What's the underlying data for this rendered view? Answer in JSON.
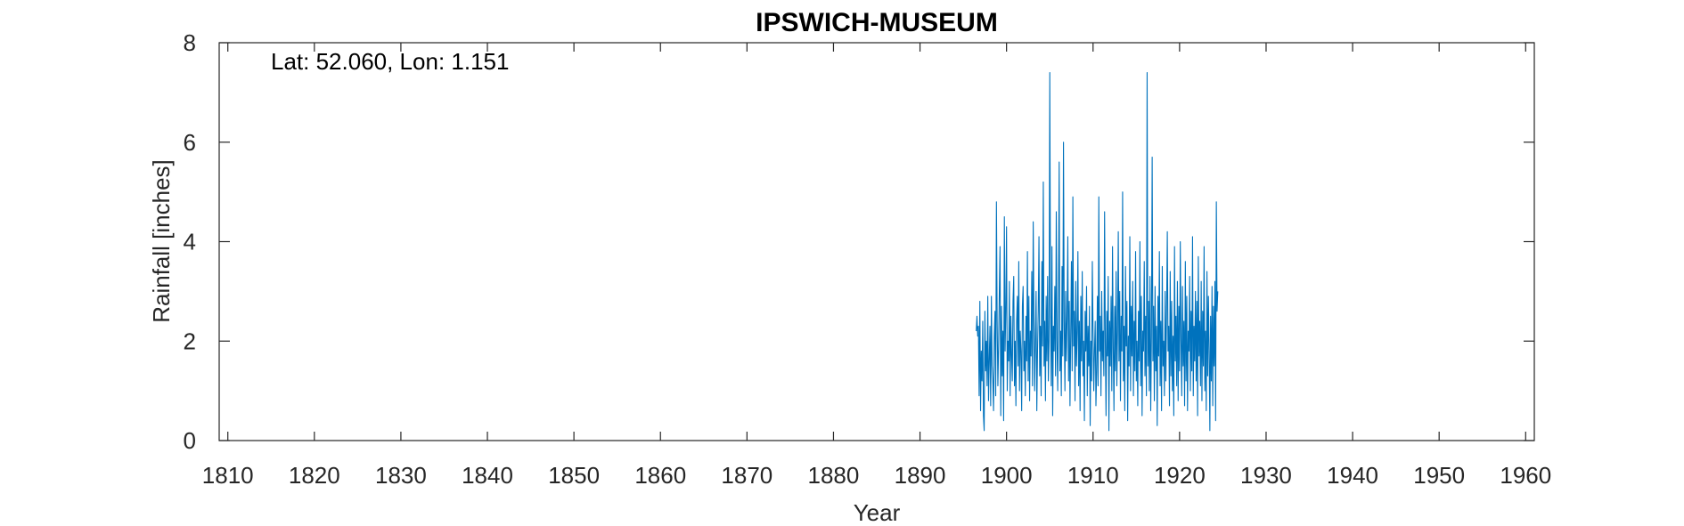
{
  "chart_data": {
    "type": "line",
    "title": "IPSWICH-MUSEUM",
    "annotation": "Lat: 52.060, Lon: 1.151",
    "xlabel": "Year",
    "ylabel": "Rainfall [inches]",
    "xlim": [
      1809,
      1961
    ],
    "ylim": [
      0,
      8
    ],
    "xticks": [
      1810,
      1820,
      1830,
      1840,
      1850,
      1860,
      1870,
      1880,
      1890,
      1900,
      1910,
      1920,
      1930,
      1940,
      1950,
      1960
    ],
    "yticks": [
      0,
      2,
      4,
      6,
      8
    ],
    "grid": false,
    "box": true,
    "series": [
      {
        "color": "#0072bd",
        "start_year": 1896.5,
        "step_years": 0.0833333,
        "values": [
          2.2,
          2.5,
          2.1,
          2.3,
          0.9,
          2.8,
          0.6,
          1.8,
          1.2,
          2.4,
          0.5,
          0.2,
          2.6,
          1.4,
          2.0,
          1.1,
          2.9,
          0.8,
          1.6,
          2.3,
          0.7,
          2.9,
          1.5,
          1.2,
          0.6,
          2.1,
          2.6,
          0.9,
          4.8,
          2.4,
          1.1,
          1.9,
          3.0,
          3.9,
          0.5,
          2.7,
          1.3,
          2.2,
          0.4,
          4.5,
          1.8,
          2.6,
          4.3,
          1.0,
          2.0,
          1.6,
          3.2,
          0.9,
          2.5,
          1.7,
          1.2,
          2.8,
          3.3,
          1.1,
          2.0,
          0.7,
          2.4,
          2.9,
          1.5,
          3.6,
          1.0,
          2.2,
          1.8,
          0.6,
          2.7,
          3.1,
          1.4,
          2.0,
          0.9,
          2.5,
          1.6,
          3.8,
          1.2,
          2.9,
          0.8,
          2.2,
          1.7,
          3.4,
          1.1,
          4.4,
          2.5,
          1.0,
          2.0,
          3.0,
          0.6,
          1.8,
          2.6,
          4.1,
          1.3,
          2.3,
          0.9,
          3.6,
          1.9,
          5.2,
          1.5,
          2.4,
          0.8,
          2.9,
          1.6,
          3.3,
          1.2,
          2.0,
          7.4,
          2.7,
          1.1,
          3.9,
          0.5,
          2.3,
          1.8,
          3.1,
          1.3,
          4.6,
          2.0,
          1.0,
          2.7,
          5.6,
          1.4,
          2.2,
          0.9,
          3.5,
          1.7,
          6.0,
          2.4,
          1.0,
          3.0,
          1.6,
          2.5,
          4.1,
          1.2,
          2.8,
          0.7,
          2.1,
          3.6,
          1.4,
          4.9,
          1.9,
          2.6,
          0.8,
          3.2,
          1.5,
          2.2,
          3.8,
          1.1,
          2.4,
          0.6,
          2.9,
          1.6,
          3.4,
          1.3,
          2.0,
          0.4,
          2.6,
          1.8,
          3.1,
          0.9,
          2.3,
          1.5,
          2.7,
          0.3,
          2.0,
          1.2,
          3.6,
          2.2,
          1.0,
          1.8,
          2.4,
          0.7,
          1.4,
          2.9,
          1.1,
          4.9,
          1.8,
          2.5,
          0.9,
          3.0,
          1.6,
          2.2,
          1.3,
          4.6,
          2.0,
          0.5,
          2.6,
          1.7,
          3.3,
          0.2,
          2.4,
          1.5,
          2.9,
          1.0,
          3.9,
          1.9,
          0.6,
          2.7,
          1.4,
          3.4,
          1.1,
          2.2,
          4.2,
          1.6,
          3.0,
          0.8,
          2.5,
          1.8,
          5.0,
          1.2,
          2.3,
          0.6,
          3.5,
          1.9,
          2.8,
          0.4,
          2.1,
          1.5,
          4.1,
          1.0,
          2.7,
          1.7,
          3.2,
          0.9,
          2.4,
          1.4,
          3.8,
          1.2,
          2.0,
          0.7,
          2.6,
          1.6,
          4.0,
          1.1,
          2.9,
          0.5,
          2.2,
          1.8,
          3.6,
          1.3,
          2.5,
          0.9,
          7.4,
          1.5,
          2.8,
          1.0,
          3.3,
          0.6,
          2.1,
          5.7,
          1.6,
          2.7,
          0.8,
          3.1,
          1.4,
          2.3,
          0.3,
          2.9,
          1.7,
          3.8,
          1.1,
          2.4,
          0.6,
          3.5,
          1.5,
          2.0,
          0.9,
          3.0,
          1.2,
          2.6,
          4.2,
          1.8,
          2.3,
          0.7,
          3.4,
          1.3,
          2.8,
          1.0,
          2.1,
          0.5,
          3.9,
          1.6,
          2.5,
          1.1,
          3.2,
          0.8,
          2.7,
          1.4,
          4.0,
          2.0,
          0.9,
          3.1,
          1.5,
          2.4,
          0.7,
          3.6,
          1.2,
          2.9,
          0.6,
          2.2,
          1.8,
          3.3,
          1.0,
          2.6,
          1.4,
          4.1,
          0.9,
          2.3,
          1.6,
          3.0,
          1.2,
          2.8,
          0.5,
          3.7,
          1.7,
          2.4,
          1.1,
          3.2,
          0.8,
          2.6,
          1.5,
          3.9,
          1.0,
          2.2,
          0.6,
          3.4,
          1.3,
          2.9,
          1.8,
          0.2,
          2.5,
          1.2,
          3.1,
          0.7,
          2.7,
          1.5,
          3.2,
          0.4,
          4.8,
          2.6,
          3.0
        ]
      }
    ]
  }
}
